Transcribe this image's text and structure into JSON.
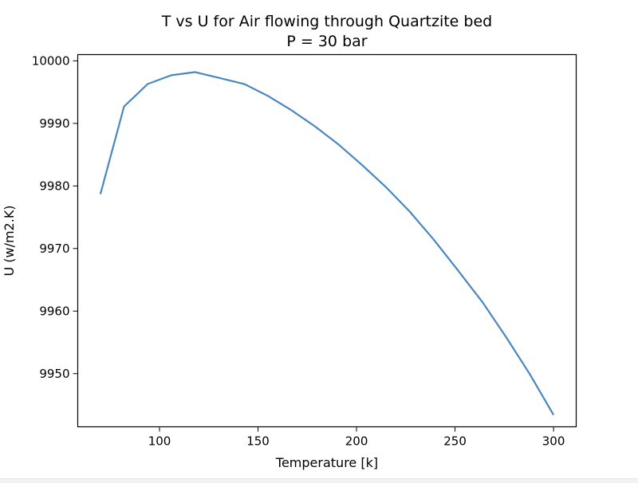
{
  "chart_data": {
    "type": "line",
    "title": "T vs U for Air flowing through Quartzite bed",
    "subtitle": "P = 30 bar",
    "xlabel": "Temperature [k]",
    "ylabel": "U (w/m2.K)",
    "xlim": [
      58.5,
      311.5
    ],
    "ylim": [
      9941.5,
      10001
    ],
    "xticks": [
      100,
      150,
      200,
      250,
      300
    ],
    "yticks": [
      9950,
      9960,
      9970,
      9980,
      9990,
      10000
    ],
    "grid": false,
    "series": [
      {
        "color": "#4a87bd",
        "x": [
          70,
          82,
          94,
          106,
          118,
          130,
          143,
          155,
          167,
          179,
          191,
          203,
          215,
          227,
          239,
          251,
          264,
          276,
          288,
          300
        ],
        "y": [
          9978.7,
          9992.7,
          9996.3,
          9997.7,
          9998.2,
          9997.3,
          9996.3,
          9994.4,
          9992.1,
          9989.5,
          9986.6,
          9983.3,
          9979.8,
          9975.9,
          9971.5,
          9966.7,
          9961.4,
          9955.8,
          9949.9,
          9943.4
        ]
      }
    ]
  }
}
